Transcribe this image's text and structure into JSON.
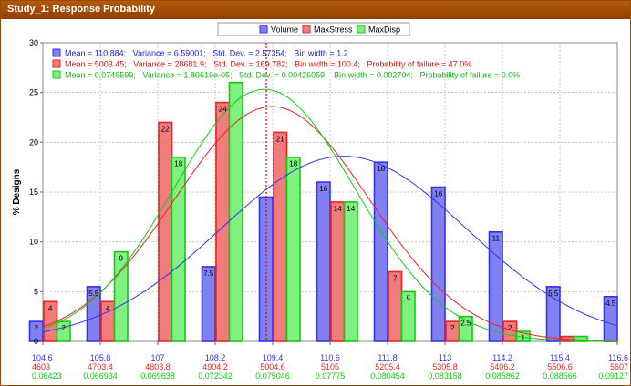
{
  "window": {
    "title": "Study_1: Response Probability"
  },
  "colors": {
    "volume": "#3333ee",
    "maxstress": "#ee2222",
    "maxdisp": "#11cc11",
    "volume_fill": "#8080f0",
    "maxstress_fill": "#f07c7c",
    "maxdisp_fill": "#80f080",
    "title_bar": "#a64c00",
    "median_line": "#dd0000"
  },
  "chart_data": {
    "type": "bar",
    "ylabel": "% Designs",
    "ylim": [
      0,
      30
    ],
    "yticks": [
      0,
      5,
      10,
      15,
      20,
      25,
      30
    ],
    "grid": true,
    "legend": {
      "placement": "top-center",
      "entries": [
        "Volume",
        "MaxStress",
        "MaxDisp"
      ]
    },
    "x_ticks": {
      "volume": [
        "104.6",
        "105.8",
        "107",
        "108.2",
        "109.4",
        "110.6",
        "111.8",
        "113",
        "114.2",
        "115.4",
        "116.6"
      ],
      "maxstress": [
        "4603",
        "4703.4",
        "4803.8",
        "4904.2",
        "5004.6",
        "5105",
        "5205.4",
        "5305.8",
        "5406.2",
        "5506.6",
        "5607"
      ],
      "maxdisp": [
        "0.06423",
        "0.066934",
        "0.069638",
        "0.072342",
        "0.075046",
        "0.07775",
        "0.080454",
        "0.083158",
        "0.085862",
        "0.088566",
        "0.09127"
      ]
    },
    "stats": [
      "Mean = 110.884;   Variance = 6.59001;   Std. Dev. = 2.57354;   Bin width = 1.2",
      "Mean = 5003.45;   Variance = 28681.9;   Std. Dev. = 169.782;   Bin width = 100.4;   Probability of failure = 47.0%",
      "Mean = 0.0746599;   Variance = 1.80619e-05;   Std. Dev. = 0.00426059;   Bin width = 0.002704;   Probability of failure = 0.0%"
    ],
    "series": [
      {
        "name": "Volume",
        "values": [
          2,
          5.5,
          0,
          7.5,
          14.5,
          16,
          18,
          15.5,
          11,
          5.5,
          4.5
        ],
        "labels": [
          "2",
          "5.5",
          "",
          "7.5",
          "",
          "16",
          "18",
          "16",
          "11",
          "5.5",
          "4.5"
        ]
      },
      {
        "name": "MaxStress",
        "values": [
          4,
          4,
          22,
          24,
          21,
          14,
          7,
          2,
          2,
          0.5
        ],
        "labels": [
          "4",
          "4",
          "22",
          "24",
          "21",
          "14",
          "7",
          "2",
          "2",
          ""
        ]
      },
      {
        "name": "MaxDisp",
        "values": [
          2,
          9,
          18.5,
          26,
          18.5,
          14,
          5,
          2.5,
          1,
          0.5
        ],
        "labels": [
          "2",
          "9",
          "18",
          "",
          "18",
          "14",
          "5",
          "2.5",
          "1",
          ""
        ]
      }
    ],
    "fit_curves": {
      "volume": {
        "mean": 110.884,
        "std": 2.57354
      },
      "maxstress": {
        "mean": 5003.45,
        "std": 169.782
      },
      "maxdisp": {
        "mean": 0.0746599,
        "std": 0.00426059
      }
    }
  }
}
